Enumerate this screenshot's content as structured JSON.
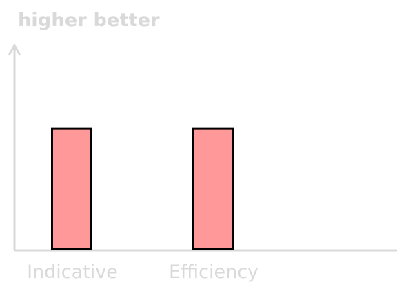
{
  "chart_data": {
    "type": "bar",
    "ylabel": "higher better",
    "xlabel": "",
    "categories": [
      "Indicative",
      "Efficiency"
    ],
    "values": [
      1,
      1
    ],
    "ylim": [
      0,
      1.75
    ],
    "grid": false,
    "colors": {
      "bar_fill": "#ff9999",
      "bar_stroke": "#000000",
      "axis": "#d9d9d9",
      "text": "#d9d9d9"
    }
  }
}
